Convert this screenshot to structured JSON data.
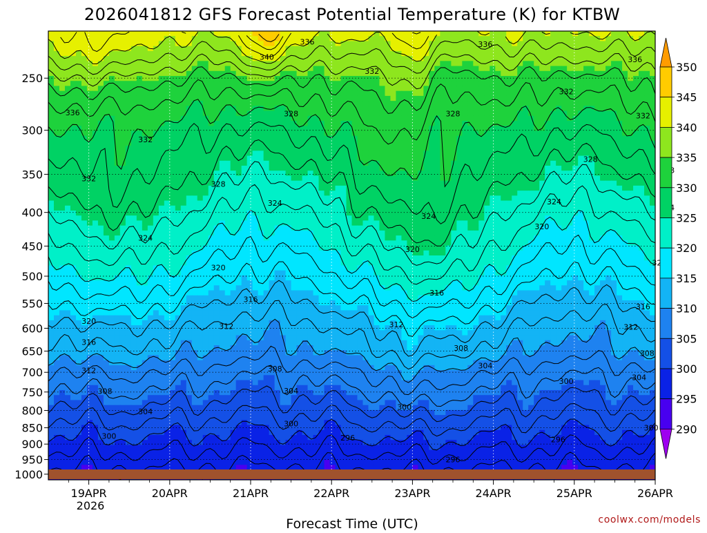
{
  "chart_data": {
    "type": "heatmap",
    "title": "2026041812 GFS Forecast Potential Temperature (K) for KTBW",
    "xlabel": "Forecast Time (UTC)",
    "ylabel": "",
    "x_ticks": [
      "19APR",
      "20APR",
      "21APR",
      "22APR",
      "23APR",
      "24APR",
      "25APR",
      "26APR"
    ],
    "x_year": "2026",
    "y_ticks": [
      250,
      300,
      350,
      400,
      450,
      500,
      550,
      600,
      650,
      700,
      750,
      800,
      850,
      900,
      950,
      1000
    ],
    "pressure_top": 212,
    "pressure_bottom": 1020,
    "y_scale": "log",
    "x_range_days": [
      -0.5,
      7.0
    ],
    "grid": "dotted",
    "colorbar": {
      "levels": [
        290,
        295,
        300,
        305,
        310,
        315,
        320,
        325,
        330,
        335,
        340,
        345,
        350
      ],
      "colors": [
        "#9e00f0",
        "#4800f0",
        "#0a22e6",
        "#1450e6",
        "#1e82f0",
        "#13b4f5",
        "#00e6ff",
        "#00f0c8",
        "#00d264",
        "#1ed23c",
        "#8ee61e",
        "#e6f000",
        "#ffcc00",
        "#ff9c00"
      ]
    },
    "profile": {
      "levels_hpa": [
        1000,
        950,
        900,
        850,
        800,
        750,
        700,
        650,
        600,
        550,
        500,
        450,
        400,
        350,
        300,
        250,
        212
      ],
      "theta_k": [
        296,
        298,
        300,
        302,
        304,
        306,
        308,
        311,
        313,
        316,
        319,
        322,
        325,
        328,
        331,
        335,
        341
      ]
    },
    "contour_labels": [
      {
        "day": -0.2,
        "p": 282,
        "v": "336"
      },
      {
        "day": 0.0,
        "p": 355,
        "v": "332"
      },
      {
        "day": 0.7,
        "p": 310,
        "v": "332"
      },
      {
        "day": 0.7,
        "p": 437,
        "v": "324"
      },
      {
        "day": 0.0,
        "p": 585,
        "v": "320"
      },
      {
        "day": 0.0,
        "p": 630,
        "v": "316"
      },
      {
        "day": 0.0,
        "p": 695,
        "v": "312"
      },
      {
        "day": 0.2,
        "p": 748,
        "v": "308"
      },
      {
        "day": 0.7,
        "p": 803,
        "v": "304"
      },
      {
        "day": 0.25,
        "p": 875,
        "v": "300"
      },
      {
        "day": 2.2,
        "p": 232,
        "v": "340"
      },
      {
        "day": 2.7,
        "p": 220,
        "v": "336"
      },
      {
        "day": 3.5,
        "p": 244,
        "v": "332"
      },
      {
        "day": 2.5,
        "p": 283,
        "v": "328"
      },
      {
        "day": 1.6,
        "p": 362,
        "v": "328"
      },
      {
        "day": 2.3,
        "p": 387,
        "v": "324"
      },
      {
        "day": 1.6,
        "p": 485,
        "v": "320"
      },
      {
        "day": 2.0,
        "p": 542,
        "v": "316"
      },
      {
        "day": 1.7,
        "p": 596,
        "v": "312"
      },
      {
        "day": 2.3,
        "p": 691,
        "v": "308"
      },
      {
        "day": 2.5,
        "p": 747,
        "v": "304"
      },
      {
        "day": 2.5,
        "p": 838,
        "v": "300"
      },
      {
        "day": 3.2,
        "p": 880,
        "v": "296"
      },
      {
        "day": 4.5,
        "p": 283,
        "v": "328"
      },
      {
        "day": 4.2,
        "p": 405,
        "v": "324"
      },
      {
        "day": 4.0,
        "p": 455,
        "v": "320"
      },
      {
        "day": 4.3,
        "p": 530,
        "v": "316"
      },
      {
        "day": 3.8,
        "p": 592,
        "v": "312"
      },
      {
        "day": 4.6,
        "p": 643,
        "v": "308"
      },
      {
        "day": 4.9,
        "p": 684,
        "v": "304"
      },
      {
        "day": 3.9,
        "p": 790,
        "v": "300"
      },
      {
        "day": 4.5,
        "p": 950,
        "v": "296"
      },
      {
        "day": 4.9,
        "p": 222,
        "v": "336"
      },
      {
        "day": 5.9,
        "p": 262,
        "v": "332"
      },
      {
        "day": 6.2,
        "p": 332,
        "v": "328"
      },
      {
        "day": 5.75,
        "p": 385,
        "v": "324"
      },
      {
        "day": 5.6,
        "p": 420,
        "v": "320"
      },
      {
        "day": 5.9,
        "p": 722,
        "v": "300"
      },
      {
        "day": 5.8,
        "p": 885,
        "v": "296"
      },
      {
        "day": 6.75,
        "p": 234,
        "v": "336"
      },
      {
        "day": 6.85,
        "p": 285,
        "v": "332"
      },
      {
        "day": 7.15,
        "p": 345,
        "v": "328"
      },
      {
        "day": 7.15,
        "p": 393,
        "v": "324"
      },
      {
        "day": 7.05,
        "p": 477,
        "v": "320"
      },
      {
        "day": 6.85,
        "p": 556,
        "v": "316"
      },
      {
        "day": 6.7,
        "p": 597,
        "v": "312"
      },
      {
        "day": 6.9,
        "p": 655,
        "v": "308"
      },
      {
        "day": 6.8,
        "p": 712,
        "v": "304"
      },
      {
        "day": 6.95,
        "p": 850,
        "v": "300"
      }
    ]
  },
  "credit": "coolwx.com/models"
}
